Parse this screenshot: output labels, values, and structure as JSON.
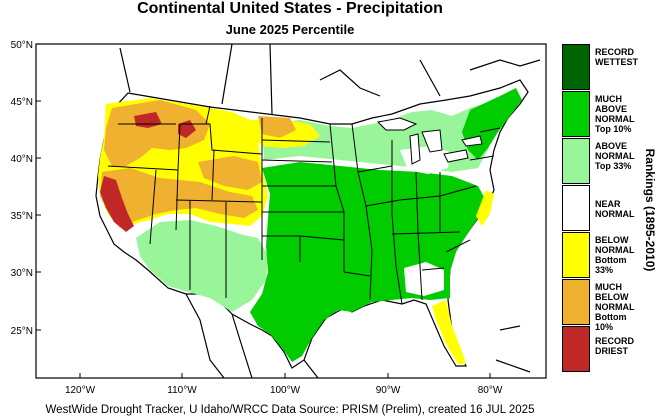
{
  "title": "Continental United States - Precipitation",
  "subtitle": "June 2025 Percentile",
  "footer": "WestWide Drought Tracker, U Idaho/WRCC Data Source: PRISM (Prelim), created 16 JUL 2025",
  "legend": {
    "title": "Rankings (1895-2010)",
    "items": [
      {
        "label": "RECORD\nWETTEST",
        "color": "#006400"
      },
      {
        "label": "MUCH\nABOVE\nNORMAL\nTop 10%",
        "color": "#00cc00"
      },
      {
        "label": "ABOVE\nNORMAL\nTop 33%",
        "color": "#99f599"
      },
      {
        "label": "NEAR\nNORMAL",
        "color": "#ffffff"
      },
      {
        "label": "BELOW\nNORMAL\nBottom 33%",
        "color": "#ffff00"
      },
      {
        "label": "MUCH\nBELOW\nNORMAL\nBottom 10%",
        "color": "#f0b030"
      },
      {
        "label": "RECORD\nDRIEST",
        "color": "#c02828"
      }
    ]
  },
  "axes": {
    "lat_labels": [
      "50°N",
      "45°N",
      "40°N",
      "35°N",
      "30°N",
      "25°N"
    ],
    "lon_labels": [
      "120°W",
      "110°W",
      "100°W",
      "90°W",
      "80°W"
    ]
  }
}
